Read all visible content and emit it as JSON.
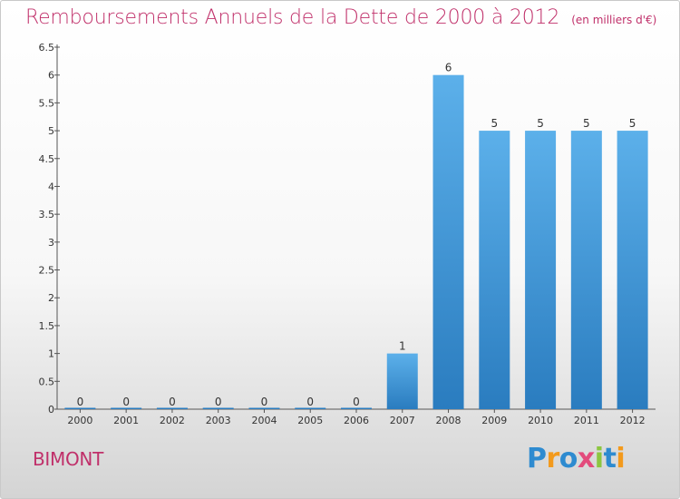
{
  "title": "Remboursements Annuels de la Dette de 2000 à 2012",
  "subtitle": "(en milliers d'€)",
  "commune": "BIMONT",
  "logo": {
    "text": "Proxiti",
    "letters": [
      {
        "char": "P",
        "color": "#2e8bd0"
      },
      {
        "char": "r",
        "color": "#f39a1c"
      },
      {
        "char": "o",
        "color": "#2e8bd0"
      },
      {
        "char": "x",
        "color": "#e34b7c"
      },
      {
        "char": "i",
        "color": "#8cc63f"
      },
      {
        "char": "t",
        "color": "#2e8bd0"
      },
      {
        "char": "i",
        "color": "#f39a1c"
      }
    ]
  },
  "colors": {
    "title": "#c0306a",
    "bar_top": "#5cb0ea",
    "bar_bottom": "#2a7cbf",
    "axis": "#555555",
    "label": "#333333"
  },
  "chart_data": {
    "type": "bar",
    "title": "Remboursements Annuels de la Dette de 2000 à 2012",
    "subtitle": "(en milliers d'€)",
    "xlabel": "",
    "ylabel": "",
    "categories": [
      "2000",
      "2001",
      "2002",
      "2003",
      "2004",
      "2005",
      "2006",
      "2007",
      "2008",
      "2009",
      "2010",
      "2011",
      "2012"
    ],
    "values": [
      0,
      0,
      0,
      0,
      0,
      0,
      0,
      1,
      6,
      5,
      5,
      5,
      5
    ],
    "value_labels": [
      "0",
      "0",
      "0",
      "0",
      "0",
      "0",
      "0",
      "1",
      "6",
      "5",
      "5",
      "5",
      "5"
    ],
    "ylim": [
      0,
      6.5
    ],
    "yticks": [
      "0",
      "0.5",
      "1",
      "1.5",
      "2",
      "2.5",
      "3",
      "3.5",
      "4",
      "4.5",
      "5",
      "5.5",
      "6",
      "6.5"
    ],
    "grid": false,
    "legend": "none"
  }
}
